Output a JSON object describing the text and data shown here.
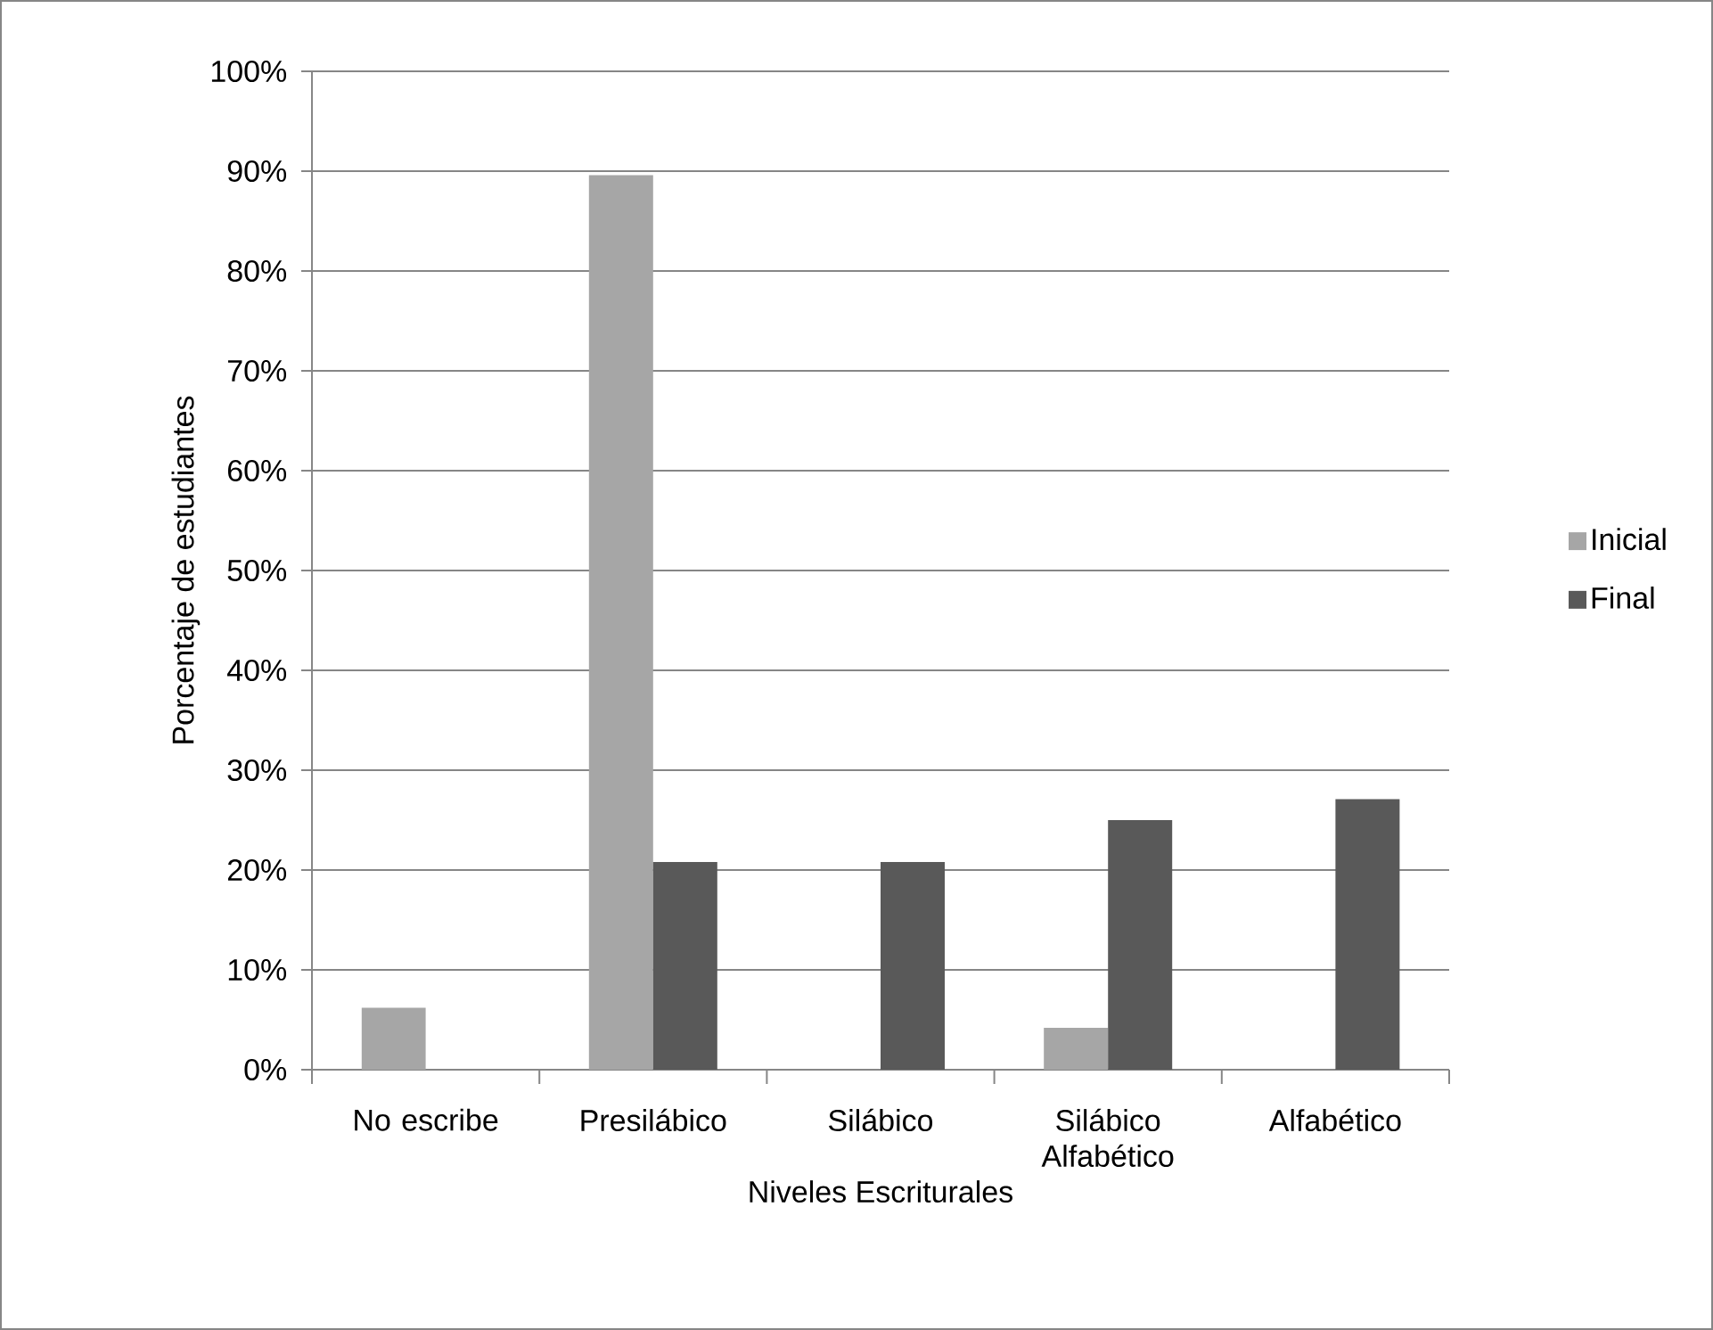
{
  "chart_data": {
    "type": "bar",
    "xlabel": "Niveles Escriturales",
    "ylabel": "Porcentaje de estudiantes",
    "categories": [
      "No escribe",
      "Presilábico",
      "Silábico",
      "Silábico Alfabético",
      "Alfabético"
    ],
    "series": [
      {
        "name": "Inicial",
        "color": "#a6a6a6",
        "values": [
          6.2,
          89.6,
          0,
          4.2,
          0
        ]
      },
      {
        "name": "Final",
        "color": "#595959",
        "values": [
          0,
          20.8,
          20.8,
          25.0,
          27.1
        ]
      }
    ],
    "ylim": [
      0,
      100
    ],
    "yticks": [
      {
        "value": 0,
        "label": "0%"
      },
      {
        "value": 10,
        "label": "10%"
      },
      {
        "value": 20,
        "label": "20%"
      },
      {
        "value": 30,
        "label": "30%"
      },
      {
        "value": 40,
        "label": "40%"
      },
      {
        "value": 50,
        "label": "50%"
      },
      {
        "value": 60,
        "label": "60%"
      },
      {
        "value": 70,
        "label": "70%"
      },
      {
        "value": 80,
        "label": "80%"
      },
      {
        "value": 90,
        "label": "90%"
      },
      {
        "value": 100,
        "label": "100%"
      }
    ],
    "grid": "y",
    "legend": "right"
  }
}
